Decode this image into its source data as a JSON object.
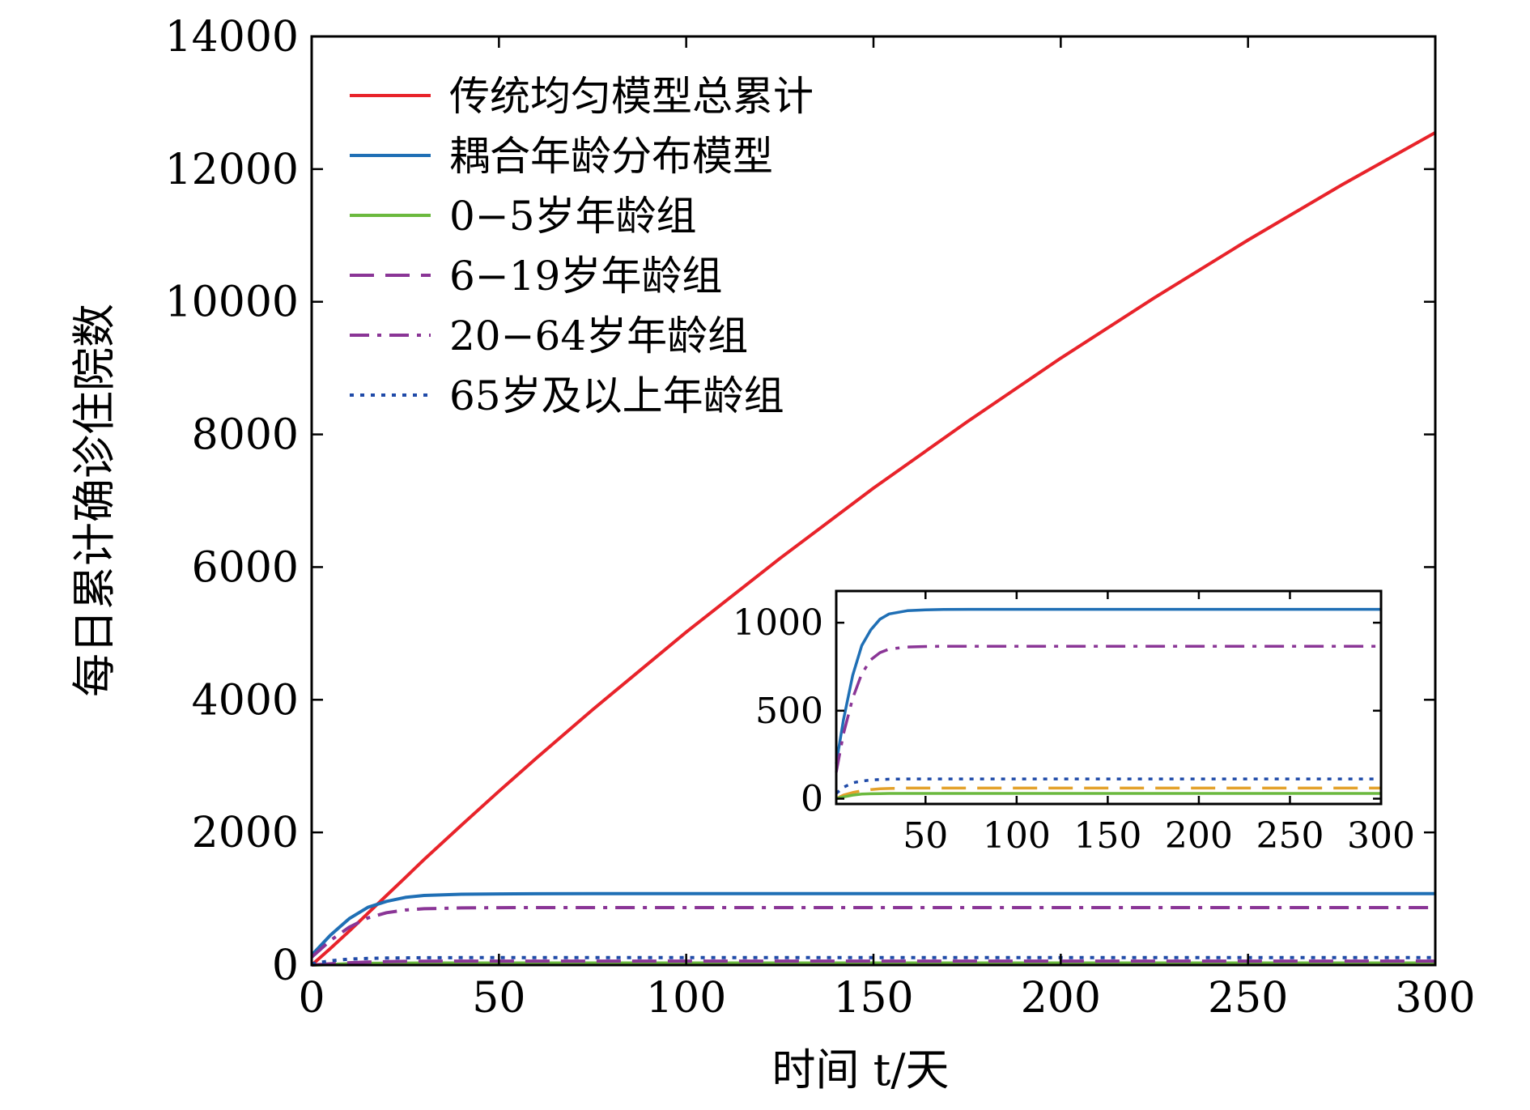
{
  "chart_data": [
    {
      "type": "line",
      "xlabel": "时间 t/天",
      "ylabel": "每日累计确诊住院数",
      "xlim": [
        0,
        300
      ],
      "ylim": [
        0,
        14000
      ],
      "xticks": [
        "0",
        "50",
        "100",
        "150",
        "200",
        "250",
        "300"
      ],
      "yticks": [
        "0",
        "2000",
        "4000",
        "6000",
        "8000",
        "10000",
        "12000",
        "14000"
      ],
      "grid": false,
      "legend_position": "top-left",
      "x": [
        0,
        5,
        10,
        15,
        20,
        25,
        30,
        40,
        50,
        60,
        75,
        100,
        125,
        150,
        175,
        200,
        225,
        250,
        275,
        300
      ],
      "series": [
        {
          "name": "传统均匀模型总累计",
          "color": "#e8232a",
          "dash": "solid",
          "values": [
            0,
            250,
            510,
            780,
            1050,
            1320,
            1590,
            2110,
            2620,
            3120,
            3850,
            5020,
            6130,
            7190,
            8190,
            9150,
            10060,
            10930,
            11760,
            12550
          ]
        },
        {
          "name": "耦合年龄分布模型",
          "color": "#1f6fb5",
          "dash": "solid",
          "values": [
            150,
            450,
            700,
            870,
            960,
            1020,
            1050,
            1068,
            1073,
            1075,
            1076,
            1076,
            1076,
            1076,
            1076,
            1076,
            1076,
            1076,
            1076,
            1076
          ]
        },
        {
          "name": "0−5岁年龄组",
          "color": "#6bb93e",
          "dash": "solid",
          "values": [
            0,
            10,
            20,
            26,
            28,
            29,
            30,
            30,
            30,
            30,
            30,
            30,
            30,
            30,
            30,
            30,
            30,
            30,
            30,
            30
          ]
        },
        {
          "name": "6−19岁年龄组",
          "color": "#8a3596",
          "dash": "long-dash",
          "values": [
            0,
            20,
            35,
            45,
            52,
            56,
            58,
            60,
            60,
            60,
            60,
            60,
            60,
            60,
            60,
            60,
            60,
            60,
            60,
            60
          ]
        },
        {
          "name": "20−64岁年龄组",
          "color": "#8a3596",
          "dash": "dash-dot",
          "values": [
            120,
            370,
            570,
            710,
            790,
            830,
            850,
            862,
            865,
            866,
            866,
            866,
            866,
            866,
            866,
            866,
            866,
            866,
            866,
            866
          ]
        },
        {
          "name": "65岁及以上年龄组",
          "color": "#1f4aa8",
          "dash": "dotted",
          "values": [
            20,
            65,
            90,
            100,
            106,
            109,
            111,
            112,
            112,
            112,
            112,
            112,
            112,
            112,
            112,
            112,
            112,
            112,
            112,
            112
          ]
        }
      ]
    },
    {
      "type": "line",
      "xlim": [
        1,
        300
      ],
      "ylim": [
        -30,
        1180
      ],
      "xticks": [
        "50",
        "100",
        "150",
        "200",
        "250",
        "300"
      ],
      "yticks": [
        "0",
        "500",
        "1000"
      ],
      "grid": false,
      "x": [
        1,
        5,
        10,
        15,
        20,
        25,
        30,
        40,
        50,
        60,
        75,
        100,
        125,
        150,
        175,
        200,
        225,
        250,
        275,
        300
      ],
      "series": [
        {
          "color": "#1f6fb5",
          "dash": "solid",
          "values": [
            200,
            450,
            700,
            870,
            960,
            1020,
            1050,
            1068,
            1073,
            1075,
            1076,
            1076,
            1076,
            1076,
            1076,
            1076,
            1076,
            1076,
            1076,
            1076
          ]
        },
        {
          "color": "#8a3596",
          "dash": "dash-dot",
          "values": [
            150,
            370,
            570,
            710,
            790,
            830,
            850,
            862,
            865,
            866,
            866,
            866,
            866,
            866,
            866,
            866,
            866,
            866,
            866,
            866
          ]
        },
        {
          "color": "#1f4aa8",
          "dash": "dotted",
          "values": [
            30,
            65,
            90,
            100,
            106,
            109,
            111,
            112,
            112,
            112,
            112,
            112,
            112,
            112,
            112,
            112,
            112,
            112,
            112,
            112
          ]
        },
        {
          "color": "#e3a12a",
          "dash": "long-dash",
          "values": [
            0,
            20,
            35,
            45,
            52,
            56,
            58,
            60,
            60,
            60,
            60,
            60,
            60,
            60,
            60,
            60,
            60,
            60,
            60,
            60
          ]
        },
        {
          "color": "#6bb93e",
          "dash": "solid",
          "values": [
            0,
            10,
            20,
            26,
            28,
            29,
            30,
            30,
            30,
            30,
            30,
            30,
            30,
            30,
            30,
            30,
            30,
            30,
            30,
            30
          ]
        }
      ]
    }
  ]
}
